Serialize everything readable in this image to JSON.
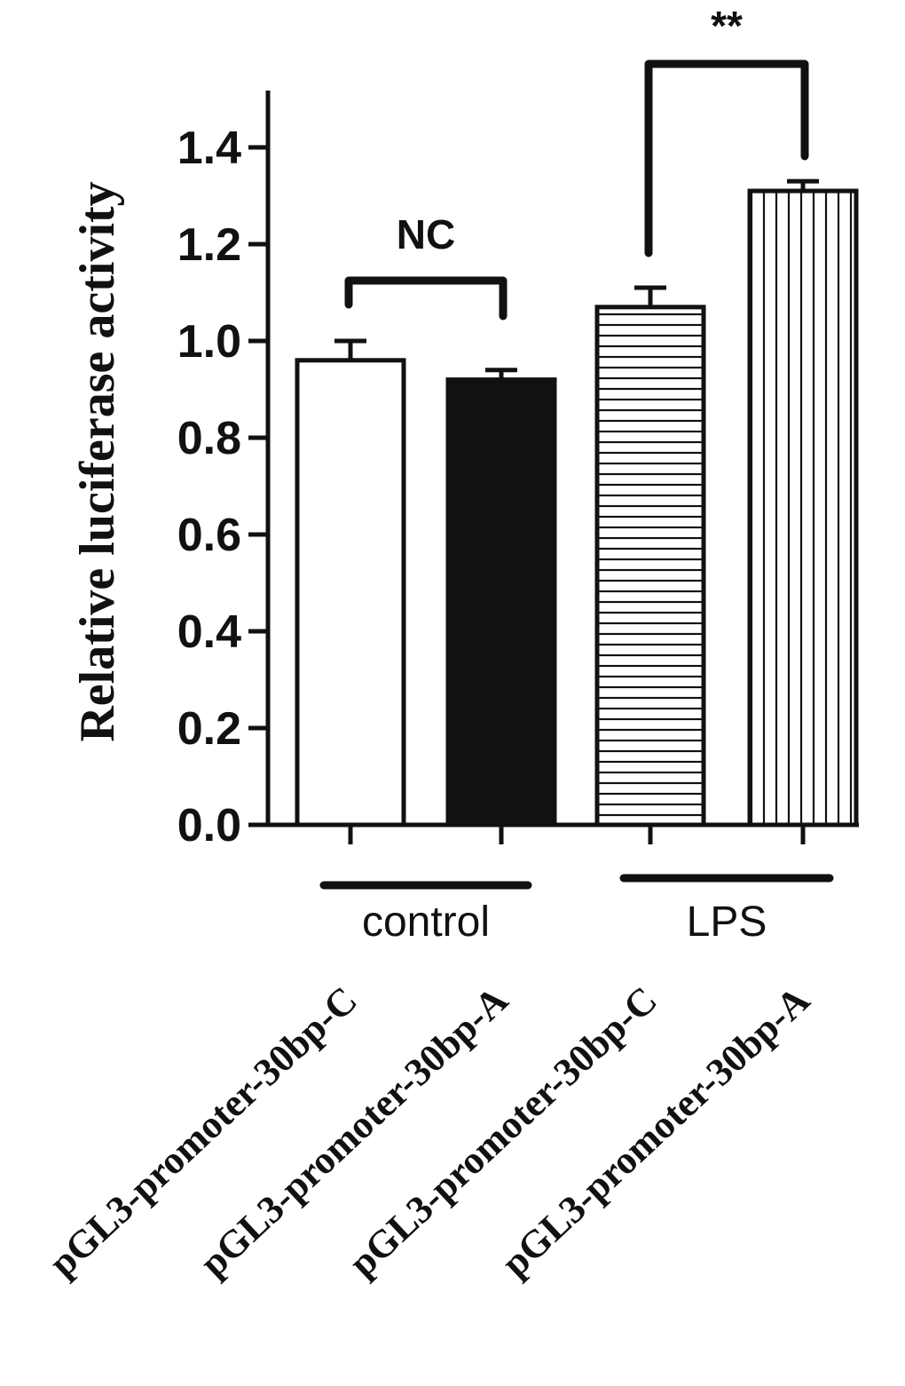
{
  "chart_data": {
    "type": "bar",
    "title": "",
    "xlabel": "",
    "ylabel": "Relative luciferase activity",
    "ylim": [
      0,
      1.5
    ],
    "yticks": [
      "0.0",
      "0.2",
      "0.4",
      "0.6",
      "0.8",
      "1.0",
      "1.2",
      "1.4"
    ],
    "categories": [
      "pGL3-promoter-30bp-C",
      "pGL3-promoter-30bp-A",
      "pGL3-promoter-30bp-C",
      "pGL3-promoter-30bp-A"
    ],
    "values": [
      0.96,
      0.92,
      1.07,
      1.31
    ],
    "errors": [
      0.04,
      0.02,
      0.04,
      0.02
    ],
    "fills": [
      "white",
      "black",
      "horizontal-stripes",
      "vertical-stripes"
    ],
    "groups": [
      {
        "label": "control",
        "members": [
          0,
          1
        ]
      },
      {
        "label": "LPS",
        "members": [
          2,
          3
        ]
      }
    ],
    "annotations": [
      {
        "label": "NC",
        "between": [
          0,
          1
        ]
      },
      {
        "label": "**",
        "between": [
          2,
          3
        ]
      }
    ],
    "grid": false,
    "legend": "none"
  }
}
